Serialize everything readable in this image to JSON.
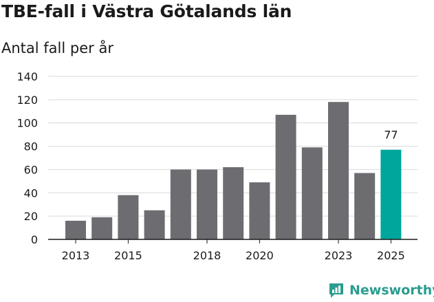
{
  "header": {
    "title": "TBE-fall i Västra Götalands län",
    "subtitle": "Antal fall per år"
  },
  "branding": {
    "name": "Newsworthy",
    "color": "#2a9d8f"
  },
  "colors": {
    "bar": "#6d6c71",
    "highlight": "#00a69c",
    "grid": "#d9d9d9",
    "axis": "#1a1a1a"
  },
  "chart_data": {
    "type": "bar",
    "title": "TBE-fall i Västra Götalands län",
    "subtitle": "Antal fall per år",
    "xlabel": "",
    "ylabel": "",
    "categories": [
      "2013",
      "2014",
      "2015",
      "2016",
      "2017",
      "2018",
      "2019",
      "2020",
      "2021",
      "2022",
      "2023",
      "2024",
      "2025"
    ],
    "values": [
      16,
      19,
      38,
      25,
      60,
      60,
      62,
      49,
      107,
      79,
      118,
      57,
      77
    ],
    "highlight_index": 12,
    "data_labels": [
      {
        "index": 12,
        "text": "77"
      }
    ],
    "x_tick_labels": [
      "2013",
      "2015",
      "2018",
      "2020",
      "2023",
      "2025"
    ],
    "y_ticks": [
      0,
      20,
      40,
      60,
      80,
      100,
      120,
      140
    ],
    "ylim": [
      0,
      140
    ],
    "grid": true,
    "legend": "none"
  }
}
